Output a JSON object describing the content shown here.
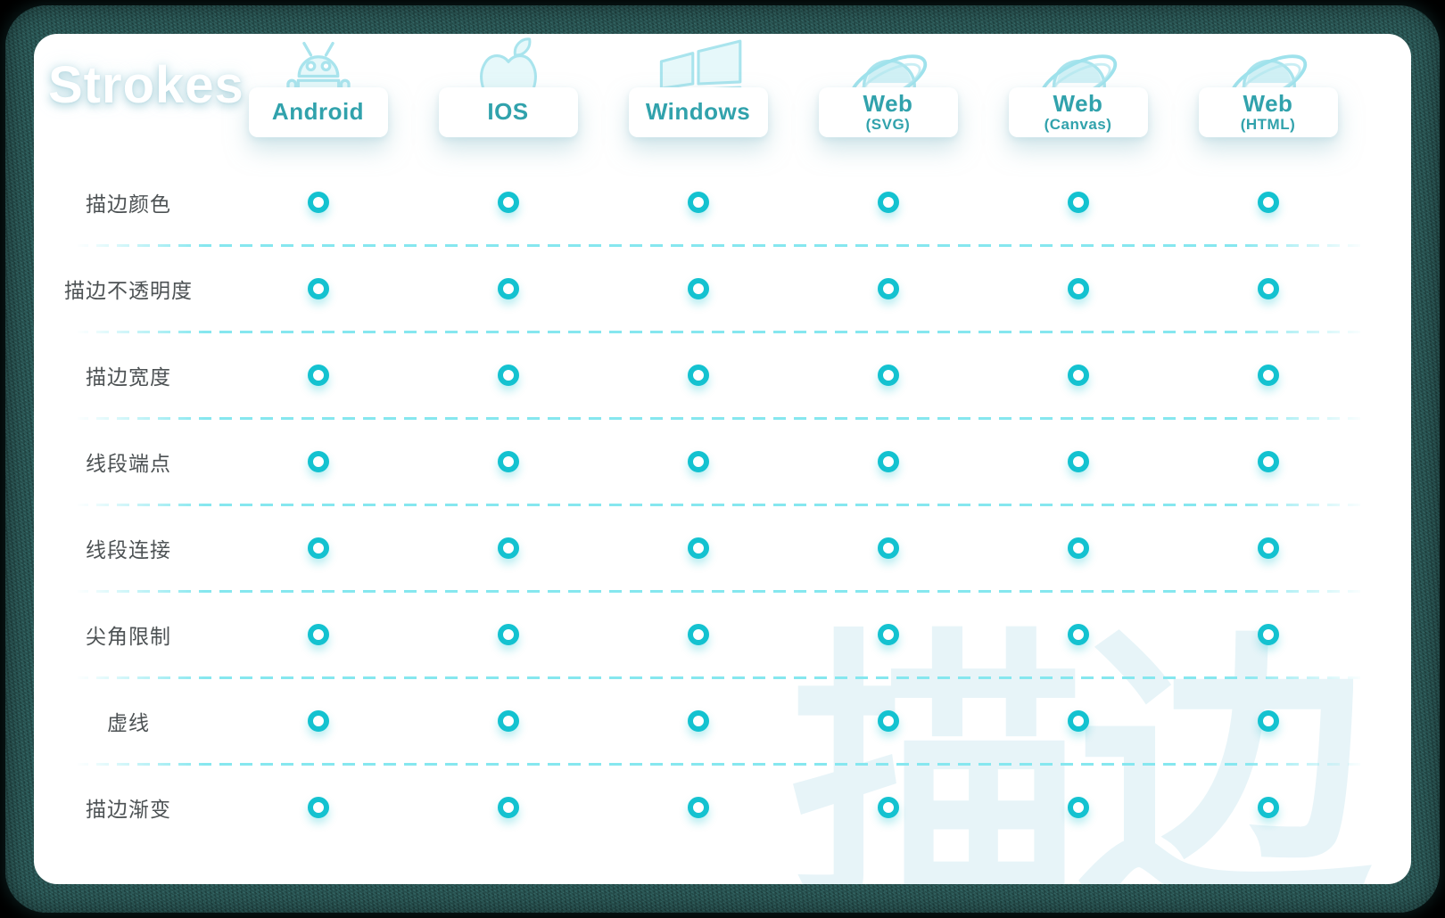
{
  "page": {
    "title": "Strokes",
    "watermark": "描边"
  },
  "columns": [
    {
      "id": "android",
      "label": "Android",
      "sub": "",
      "icon": "android-icon"
    },
    {
      "id": "ios",
      "label": "IOS",
      "sub": "",
      "icon": "apple-icon"
    },
    {
      "id": "windows",
      "label": "Windows",
      "sub": "",
      "icon": "windows-icon"
    },
    {
      "id": "web-svg",
      "label": "Web",
      "sub": "(SVG)",
      "icon": "ie-browser-icon"
    },
    {
      "id": "web-canvas",
      "label": "Web",
      "sub": "(Canvas)",
      "icon": "ie-browser-icon"
    },
    {
      "id": "web-html",
      "label": "Web",
      "sub": "(HTML)",
      "icon": "ie-browser-icon"
    }
  ],
  "rows": [
    {
      "label": "描边颜色",
      "support": [
        true,
        true,
        true,
        true,
        true,
        true
      ]
    },
    {
      "label": "描边不透明度",
      "support": [
        true,
        true,
        true,
        true,
        true,
        true
      ]
    },
    {
      "label": "描边宽度",
      "support": [
        true,
        true,
        true,
        true,
        true,
        true
      ]
    },
    {
      "label": "线段端点",
      "support": [
        true,
        true,
        true,
        true,
        true,
        true
      ]
    },
    {
      "label": "线段连接",
      "support": [
        true,
        true,
        true,
        true,
        true,
        true
      ]
    },
    {
      "label": "尖角限制",
      "support": [
        true,
        true,
        true,
        true,
        true,
        true
      ]
    },
    {
      "label": "虚线",
      "support": [
        true,
        true,
        true,
        true,
        true,
        true
      ]
    },
    {
      "label": "描边渐变",
      "support": [
        true,
        true,
        true,
        true,
        true,
        true
      ]
    }
  ],
  "chart_data": {
    "type": "table",
    "title": "Strokes",
    "watermark": "描边",
    "columns": [
      "Android",
      "IOS",
      "Windows",
      "Web (SVG)",
      "Web (Canvas)",
      "Web (HTML)"
    ],
    "row_labels": [
      "描边颜色",
      "描边不透明度",
      "描边宽度",
      "线段端点",
      "线段连接",
      "尖角限制",
      "虚线",
      "描边渐变"
    ],
    "values": [
      [
        "supported",
        "supported",
        "supported",
        "supported",
        "supported",
        "supported"
      ],
      [
        "supported",
        "supported",
        "supported",
        "supported",
        "supported",
        "supported"
      ],
      [
        "supported",
        "supported",
        "supported",
        "supported",
        "supported",
        "supported"
      ],
      [
        "supported",
        "supported",
        "supported",
        "supported",
        "supported",
        "supported"
      ],
      [
        "supported",
        "supported",
        "supported",
        "supported",
        "supported",
        "supported"
      ],
      [
        "supported",
        "supported",
        "supported",
        "supported",
        "supported",
        "supported"
      ],
      [
        "supported",
        "supported",
        "supported",
        "supported",
        "supported",
        "supported"
      ],
      [
        "supported",
        "supported",
        "supported",
        "supported",
        "supported",
        "supported"
      ]
    ],
    "marker": "teal-ring-circle",
    "legend_position": "none",
    "grid": "dashed-horizontal-separators"
  },
  "colors": {
    "accent_ring": "#14c2d0",
    "header_text": "#31a2ac",
    "row_label_text": "#4d5254",
    "dashed_separator": "#86e7ef",
    "icon_stroke": "#a9e4ed",
    "icon_fill": "#e3f7fa",
    "frame": "#2d5c5a",
    "card_background": "#ffffff",
    "watermark_tint": "#c5e4ef"
  }
}
